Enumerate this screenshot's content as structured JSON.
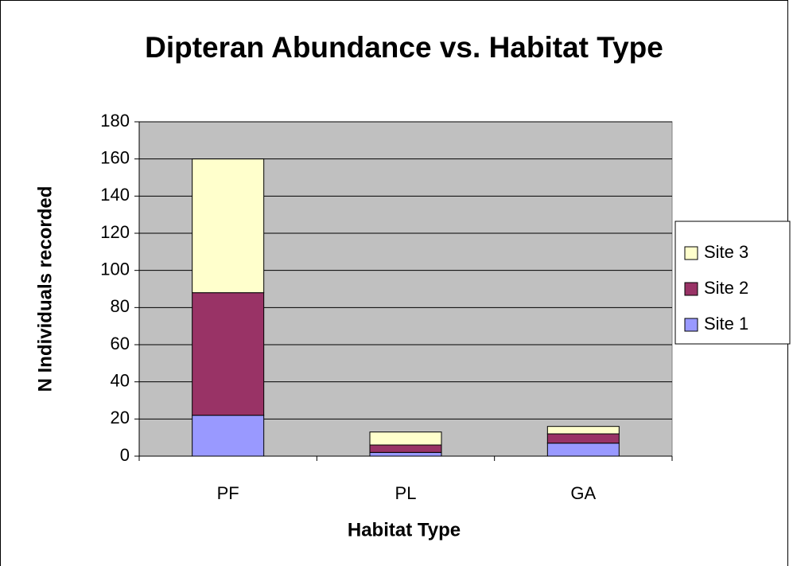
{
  "chart_data": {
    "type": "stacked_bar",
    "title": "Dipteran Abundance vs. Habitat Type",
    "x_label": "Habitat Type",
    "y_label": "N Individuals recorded",
    "categories": [
      "PF",
      "PL",
      "GA"
    ],
    "series": [
      {
        "name": "Site 1",
        "color": "#9999ff",
        "values": [
          22,
          2,
          7
        ]
      },
      {
        "name": "Site 2",
        "color": "#993366",
        "values": [
          66,
          4,
          5
        ]
      },
      {
        "name": "Site 3",
        "color": "#ffffcc",
        "values": [
          72,
          7,
          4
        ]
      }
    ],
    "ylim": [
      0,
      180
    ],
    "yticks": [
      0,
      20,
      40,
      60,
      80,
      100,
      120,
      140,
      160,
      180
    ],
    "grid": true,
    "legend": "right"
  }
}
